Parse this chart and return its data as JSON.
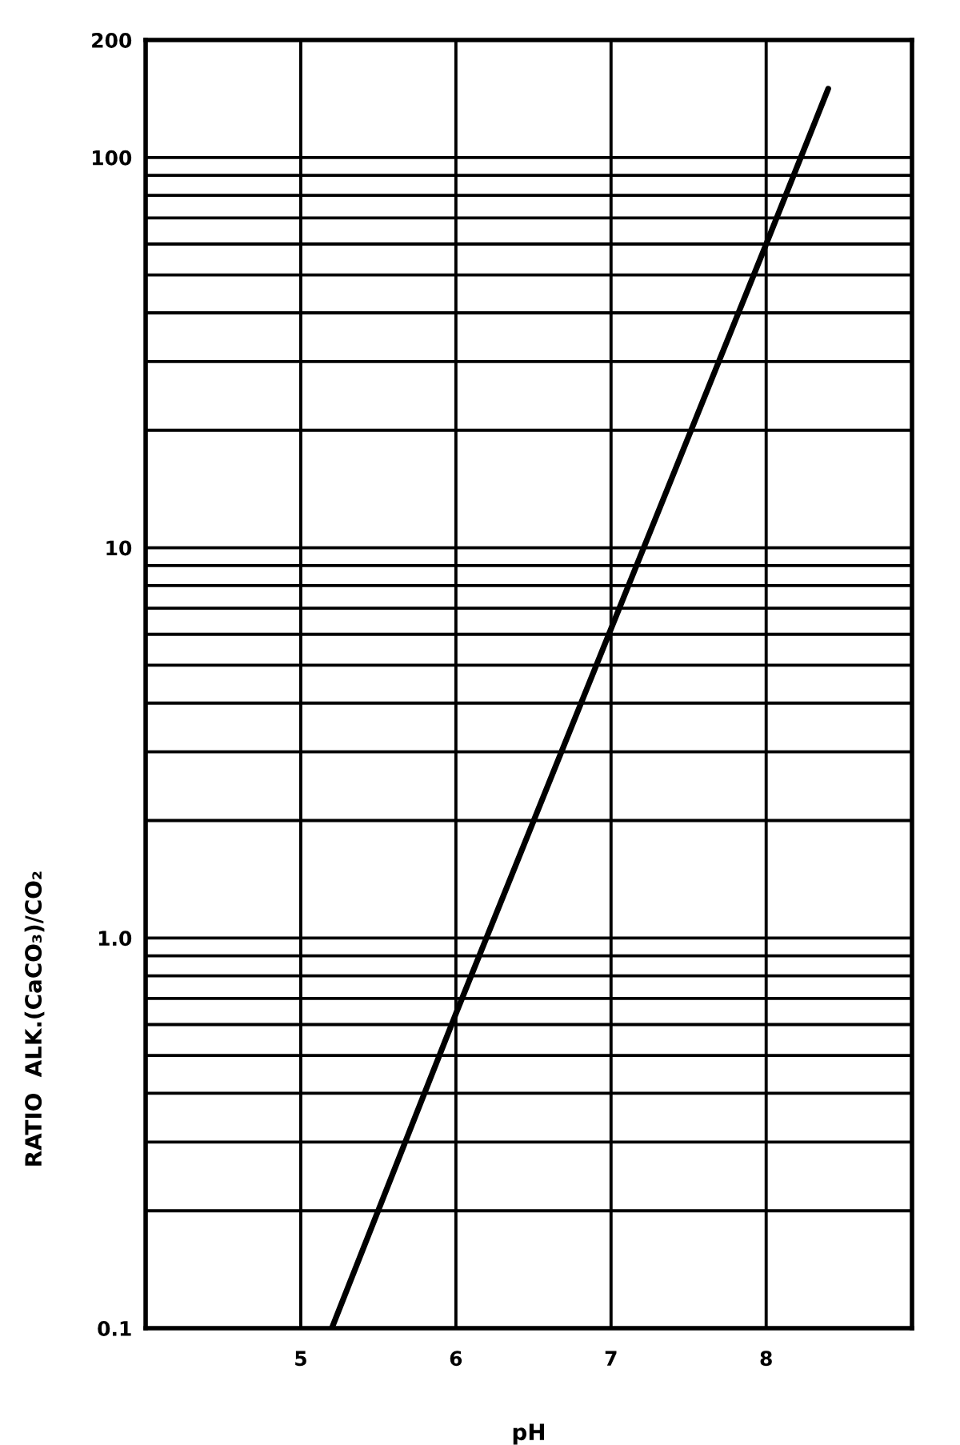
{
  "chart_data": {
    "type": "line",
    "xlabel": "pH",
    "ylabel": "RATIO  ALK.(CaCO₃)/CO₂",
    "series": [
      {
        "color": "#000000",
        "x": [
          5.2,
          6.0,
          7.0,
          8.0,
          8.4
        ],
        "values": [
          0.1,
          0.64,
          6.2,
          60,
          150
        ]
      }
    ],
    "log": "y",
    "xlim": [
      4.0,
      8.94
    ],
    "ylim": [
      0.1,
      200
    ],
    "xticks": [
      5,
      6,
      7,
      8
    ],
    "yticks": [
      0.1,
      {
        "value": 0.2,
        "label": null
      },
      {
        "value": 0.3,
        "label": null
      },
      {
        "value": 0.4,
        "label": null
      },
      {
        "value": 0.5,
        "label": null
      },
      {
        "value": 0.6,
        "label": null
      },
      {
        "value": 0.7,
        "label": null
      },
      {
        "value": 0.8,
        "label": null
      },
      {
        "value": 0.9,
        "label": null
      },
      {
        "value": 1,
        "label": "1.0"
      },
      {
        "value": 2,
        "label": null
      },
      {
        "value": 3,
        "label": null
      },
      {
        "value": 4,
        "label": null
      },
      {
        "value": 5,
        "label": null
      },
      {
        "value": 6,
        "label": null
      },
      {
        "value": 7,
        "label": null
      },
      {
        "value": 8,
        "label": null
      },
      {
        "value": 9,
        "label": null
      },
      10,
      {
        "value": 20,
        "label": null
      },
      {
        "value": 30,
        "label": null
      },
      {
        "value": 40,
        "label": null
      },
      {
        "value": 50,
        "label": null
      },
      {
        "value": 60,
        "label": null
      },
      {
        "value": 70,
        "label": null
      },
      {
        "value": 80,
        "label": null
      },
      {
        "value": 90,
        "label": null
      },
      100,
      200
    ],
    "grid": true,
    "line_style": "solid"
  }
}
